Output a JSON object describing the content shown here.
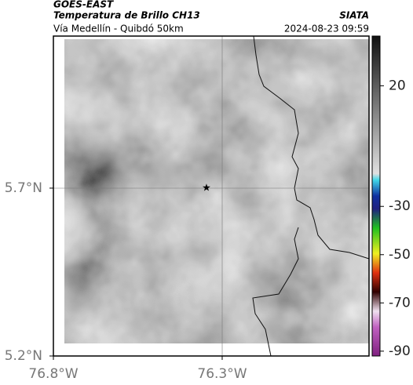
{
  "header": {
    "source": "GOES-EAST",
    "title": "Temperatura de Brillo CH13",
    "agency": "SIATA",
    "subtitle": "Vía Medellín - Quibdó 50km",
    "timestamp": "2024-08-23 09:59"
  },
  "map": {
    "xlim": [
      -76.8,
      -75.865
    ],
    "ylim": [
      5.2,
      6.153
    ],
    "xticks": [
      {
        "value": -76.8,
        "label": "76.8°W"
      },
      {
        "value": -76.3,
        "label": "76.3°W"
      }
    ],
    "yticks": [
      {
        "value": 5.2,
        "label": "5.2°N"
      },
      {
        "value": 5.7,
        "label": "5.7°N"
      }
    ]
  },
  "colorbar": {
    "lim": [
      -92,
      40.6
    ],
    "ticks": [
      20,
      -30,
      -50,
      -70,
      -90
    ]
  }
}
